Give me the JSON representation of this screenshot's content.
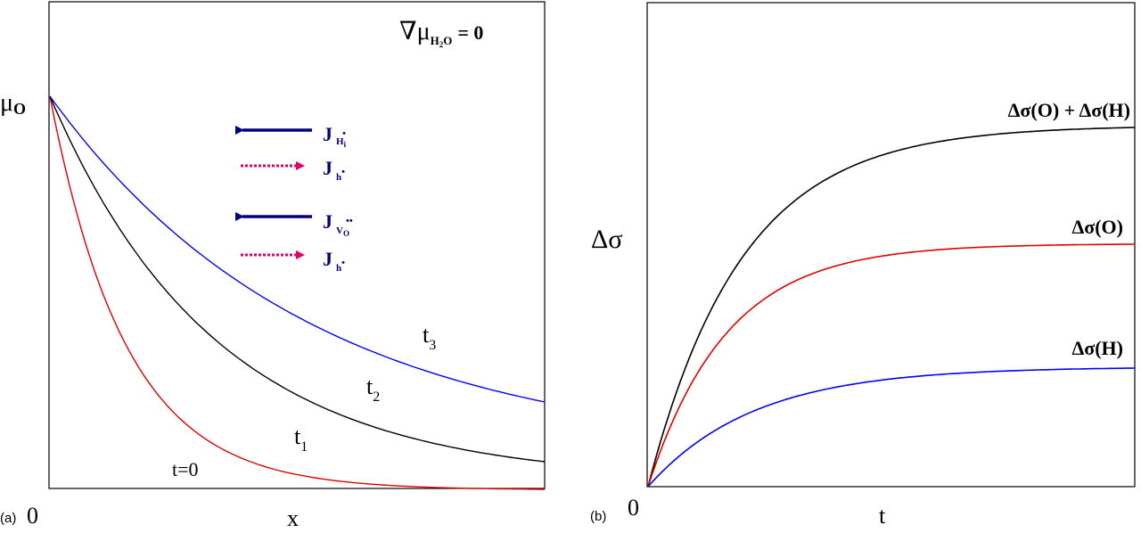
{
  "panel_a": {
    "panel_label": "(a)",
    "origin_label": "0",
    "x_label": "x",
    "y_label_main": "μ",
    "y_label_sub": "O",
    "condition": {
      "nabla": "∇",
      "mu": "μ",
      "sub": "H",
      "sub_num": "2",
      "sub_tail": "O",
      "equals": "= 0"
    },
    "legend": [
      {
        "main": "J",
        "sub": "H",
        "sub2": "i",
        "sup": "•",
        "color": "#00007f",
        "style": "solid",
        "direction": "left"
      },
      {
        "main": "J",
        "sub": "h",
        "sup": "•",
        "color": "#e0006c",
        "style": "dashed",
        "direction": "right"
      },
      {
        "main": "J",
        "sub": "V",
        "sub2": "O",
        "sup": "••",
        "color": "#00007f",
        "style": "solid",
        "direction": "left"
      },
      {
        "main": "J",
        "sub": "h",
        "sup": "•",
        "color": "#e0006c",
        "style": "dashed",
        "direction": "right"
      }
    ],
    "curves": [
      {
        "label_main": "t=0",
        "label_sub": "",
        "color": "#e00000"
      },
      {
        "label_main": "t",
        "label_sub": "1",
        "color": "#000000"
      },
      {
        "label_main": "t",
        "label_sub": "2",
        "color": "#000000"
      },
      {
        "label_main": "t",
        "label_sub": "3",
        "color": "#0000ff"
      }
    ]
  },
  "panel_b": {
    "panel_label": "(b)",
    "origin_label": "0",
    "x_label": "t",
    "y_label": "Δσ",
    "curves": [
      {
        "label": "Δσ(O) + Δσ(H)",
        "color": "#000000"
      },
      {
        "label": "Δσ(O)",
        "color": "#e00000"
      },
      {
        "label": "Δσ(H)",
        "color": "#0000ff"
      }
    ]
  }
}
